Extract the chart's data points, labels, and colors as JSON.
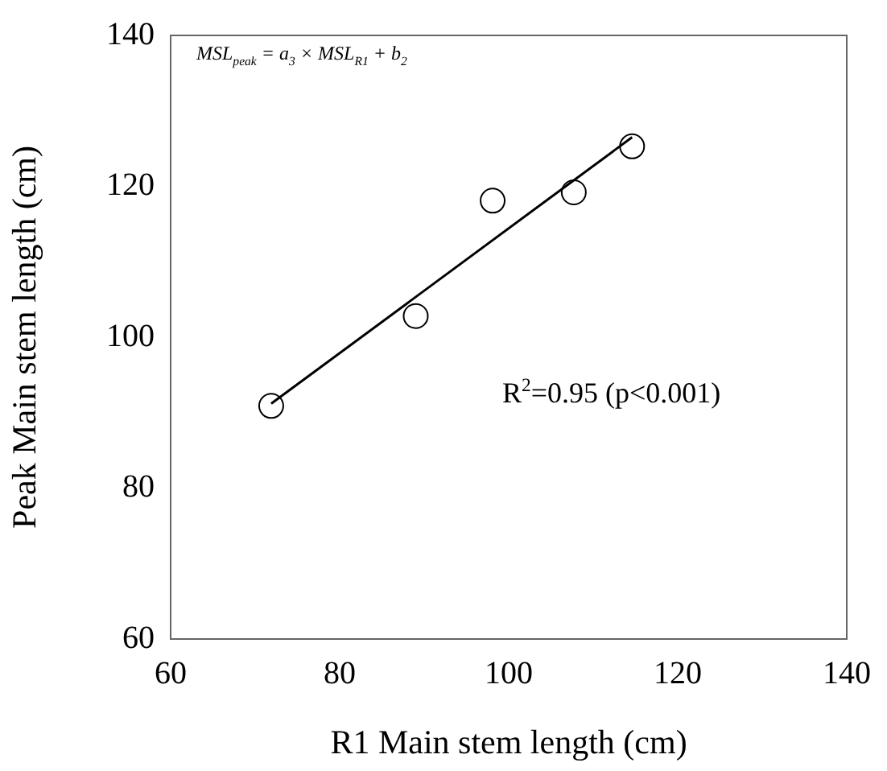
{
  "chart_data": {
    "type": "scatter",
    "xlabel": "R1 Main stem length (cm)",
    "ylabel": "Peak Main stem length (cm)",
    "xlim": [
      60,
      140
    ],
    "xticks": [
      60,
      80,
      100,
      120,
      140
    ],
    "ylim": [
      60,
      140
    ],
    "yticks": [
      60,
      80,
      100,
      120,
      140
    ],
    "grid": false,
    "legend": false,
    "series": [
      {
        "type": "scatter",
        "marker": "circle",
        "color": "#000000",
        "x": [
          71.9,
          89.0,
          98.1,
          107.7,
          114.6
        ],
        "values": [
          90.9,
          102.8,
          118.1,
          119.2,
          125.3
        ]
      },
      {
        "type": "line",
        "marker": "none",
        "line_style": "solid",
        "color": "#000000",
        "x": [
          71.9,
          114.6
        ],
        "values": [
          91.2,
          126.5
        ]
      }
    ],
    "annotations": [
      "MSL$_{peak}$ = a$_{3}$ × MSL$_{R1}$ + b$_{2}$",
      "R$^{2}$=0.95 (p<0.001)"
    ]
  }
}
